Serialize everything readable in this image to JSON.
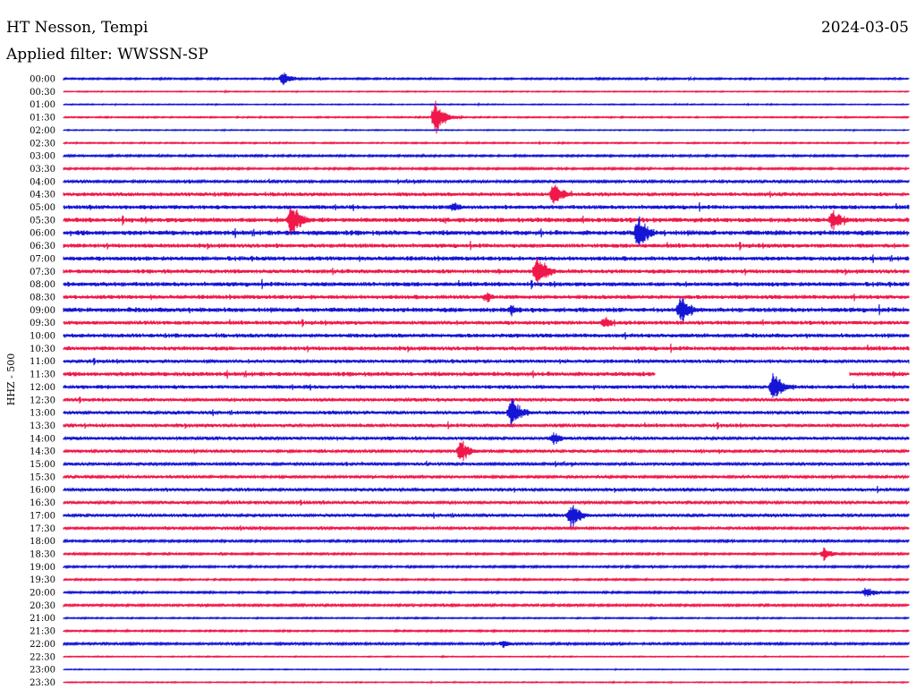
{
  "chart_data": {
    "type": "line",
    "title": "HT Nesson, Tempi",
    "date": "2024-03-05",
    "subtitle": "Applied filter: WWSSN-SP",
    "ylabel": "HHZ - 500",
    "grid": false,
    "colors": {
      "even": "#1515d5",
      "odd": "#f0184a"
    },
    "rows": [
      "00:00",
      "00:30",
      "01:00",
      "01:30",
      "02:00",
      "02:30",
      "03:00",
      "03:30",
      "04:00",
      "04:30",
      "05:00",
      "05:30",
      "06:00",
      "06:30",
      "07:00",
      "07:30",
      "08:00",
      "08:30",
      "09:00",
      "09:30",
      "10:00",
      "10:30",
      "11:00",
      "11:30",
      "12:00",
      "12:30",
      "13:00",
      "13:30",
      "14:00",
      "14:30",
      "15:00",
      "15:30",
      "16:00",
      "16:30",
      "17:00",
      "17:30",
      "18:00",
      "18:30",
      "19:00",
      "19:30",
      "20:00",
      "20:30",
      "21:00",
      "21:30",
      "22:00",
      "22:30",
      "23:00",
      "23:30"
    ],
    "row_duration_min": 30,
    "events": [
      {
        "row": "00:00",
        "t": 0.26,
        "amp": 10
      },
      {
        "row": "01:30",
        "t": 0.44,
        "amp": 22
      },
      {
        "row": "04:30",
        "t": 0.58,
        "amp": 16
      },
      {
        "row": "05:00",
        "t": 0.46,
        "amp": 8
      },
      {
        "row": "05:30",
        "t": 0.27,
        "amp": 26
      },
      {
        "row": "05:30",
        "t": 0.91,
        "amp": 14
      },
      {
        "row": "06:00",
        "t": 0.68,
        "amp": 24
      },
      {
        "row": "07:30",
        "t": 0.56,
        "amp": 26
      },
      {
        "row": "08:30",
        "t": 0.5,
        "amp": 8
      },
      {
        "row": "09:00",
        "t": 0.73,
        "amp": 22
      },
      {
        "row": "09:00",
        "t": 0.53,
        "amp": 8
      },
      {
        "row": "09:30",
        "t": 0.64,
        "amp": 9
      },
      {
        "row": "12:00",
        "t": 0.84,
        "amp": 24
      },
      {
        "row": "13:00",
        "t": 0.53,
        "amp": 24
      },
      {
        "row": "14:00",
        "t": 0.58,
        "amp": 10
      },
      {
        "row": "14:30",
        "t": 0.47,
        "amp": 16
      },
      {
        "row": "17:00",
        "t": 0.6,
        "amp": 20
      },
      {
        "row": "18:30",
        "t": 0.9,
        "amp": 9
      },
      {
        "row": "20:00",
        "t": 0.95,
        "amp": 8
      },
      {
        "row": "22:00",
        "t": 0.52,
        "amp": 6
      }
    ],
    "gaps": [
      {
        "row": "11:30",
        "t0": 0.7,
        "t1": 0.93
      }
    ],
    "noise_level": [
      1,
      0.6,
      0.6,
      0.8,
      0.6,
      0.8,
      1.2,
      1.2,
      1.6,
      2.4,
      2.6,
      3.0,
      3.2,
      2.6,
      2.8,
      2.6,
      2.8,
      2.6,
      3.0,
      2.4,
      2.6,
      2.6,
      2.2,
      2.8,
      2.4,
      2.0,
      2.2,
      2.2,
      2.0,
      1.8,
      1.8,
      1.6,
      2.0,
      1.8,
      2.0,
      1.6,
      1.4,
      1.2,
      1.2,
      1.0,
      1.2,
      1.4,
      0.8,
      1.0,
      1.4,
      0.6,
      0.5,
      0.6
    ]
  }
}
